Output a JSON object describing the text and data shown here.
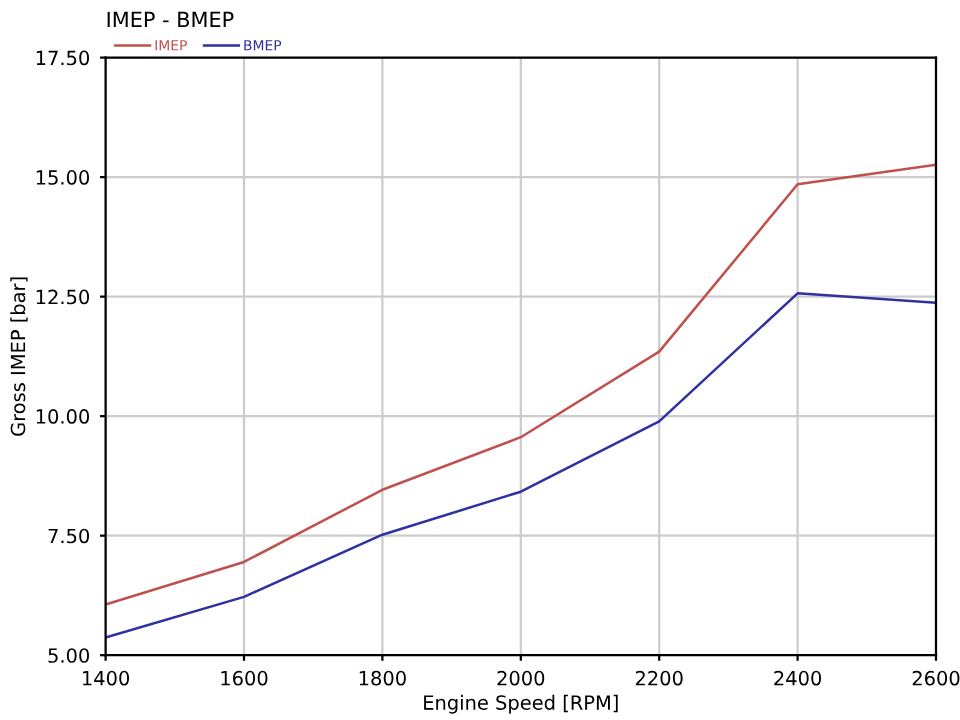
{
  "chart_data": {
    "type": "line",
    "title": "IMEP - BMEP",
    "xlabel": "Engine Speed [RPM]",
    "ylabel": "Gross IMEP [bar]",
    "x": [
      1400,
      1600,
      1800,
      2000,
      2200,
      2400,
      2600
    ],
    "series": [
      {
        "name": "IMEP",
        "color": "#c0504d",
        "values": [
          6.06,
          6.95,
          8.46,
          9.56,
          11.35,
          14.85,
          15.26
        ]
      },
      {
        "name": "BMEP",
        "color": "#3030a0",
        "values": [
          5.37,
          6.22,
          7.52,
          8.42,
          9.89,
          12.57,
          12.37
        ]
      }
    ],
    "xlim": [
      1400,
      2600
    ],
    "xticks": [
      1400,
      1600,
      1800,
      2000,
      2200,
      2400,
      2600
    ],
    "ylim": [
      5,
      17.5
    ],
    "yticks": [
      {
        "value": 5,
        "label": "5.00"
      },
      {
        "value": 7.5,
        "label": "7.50"
      },
      {
        "value": 10,
        "label": "10.00"
      },
      {
        "value": 12.5,
        "label": "12.50"
      },
      {
        "value": 15,
        "label": "15.00"
      },
      {
        "value": 17.5,
        "label": "17.50"
      }
    ],
    "grid": true,
    "legend": "top left",
    "marker": "none",
    "line_style": "solid"
  }
}
